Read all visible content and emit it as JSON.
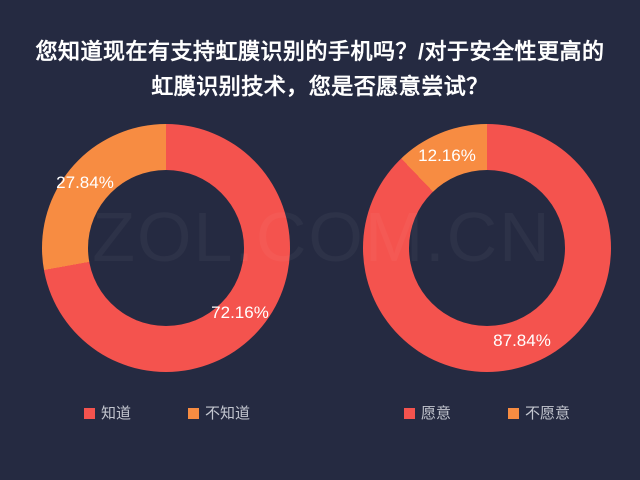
{
  "title": {
    "line1": "您知道现在有支持虹膜识别的手机吗？/对于安全性更高的",
    "line2": "虹膜识别技术，您是否愿意尝试？"
  },
  "watermark": "ZOL.COM.CN",
  "colors": {
    "background": "#252A41",
    "series_red": "#F4534E",
    "series_orange": "#F78C42",
    "title_text": "#FFFFFF",
    "label_text": "#FFFFFF",
    "legend_text": "#C3C6CF"
  },
  "chart_data": [
    {
      "type": "pie",
      "subtype": "donut",
      "question": "您知道现在有支持虹膜识别的手机吗？",
      "legend_position": "bottom",
      "start_angle_deg": 0,
      "direction": "clockwise",
      "slices": [
        {
          "label": "知道",
          "value": 72.16,
          "display": "72.16%",
          "color": "#F4534E"
        },
        {
          "label": "不知道",
          "value": 27.84,
          "display": "27.84%",
          "color": "#F78C42"
        }
      ]
    },
    {
      "type": "pie",
      "subtype": "donut",
      "question": "对于安全性更高的虹膜识别技术，您是否愿意尝试？",
      "legend_position": "bottom",
      "start_angle_deg": 0,
      "direction": "clockwise",
      "slices": [
        {
          "label": "愿意",
          "value": 87.84,
          "display": "87.84%",
          "color": "#F4534E"
        },
        {
          "label": "不愿意",
          "value": 12.16,
          "display": "12.16%",
          "color": "#F78C42"
        }
      ]
    }
  ]
}
